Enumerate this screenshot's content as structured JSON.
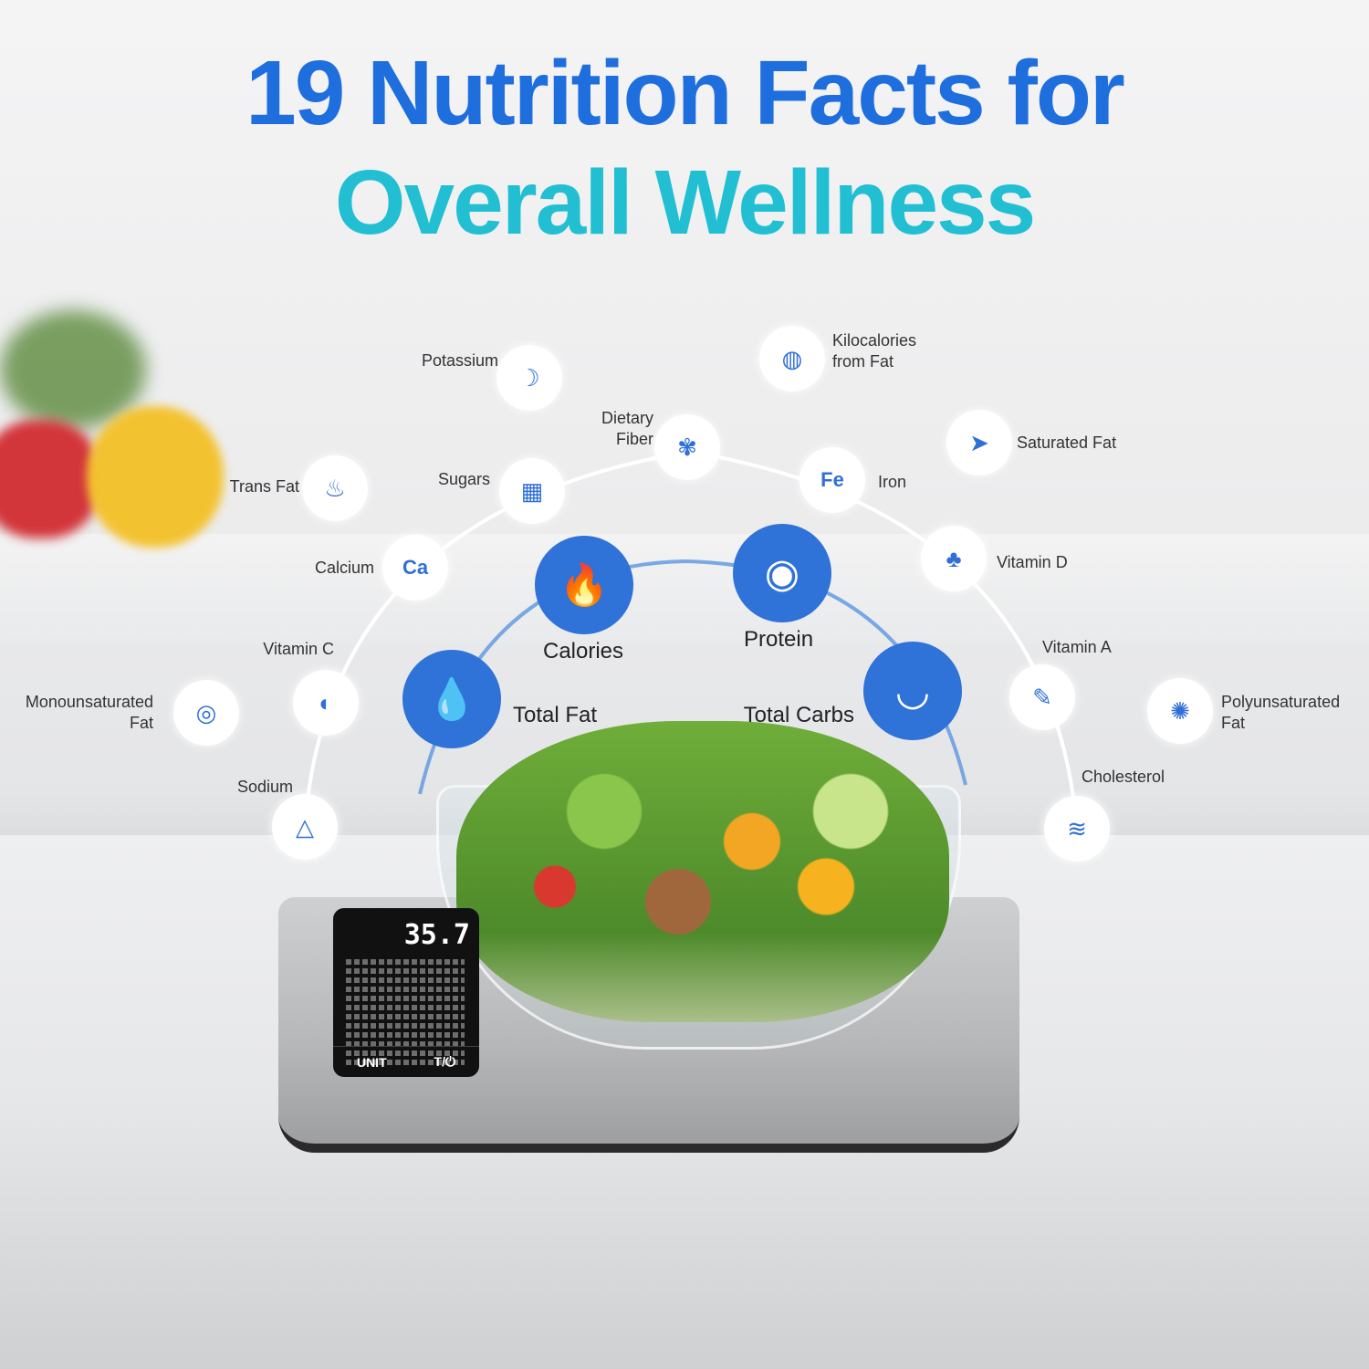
{
  "title": {
    "line1": "19 Nutrition Facts for",
    "line2": "Overall Wellness"
  },
  "colors": {
    "title_blue": "#1f6ede",
    "title_teal": "#22bfd3",
    "icon_blue": "#2f72d8"
  },
  "primary_nutrients": [
    {
      "label": "Calories",
      "icon": "flame-icon"
    },
    {
      "label": "Protein",
      "icon": "egg-icon"
    },
    {
      "label": "Total Fat",
      "icon": "droplets-icon"
    },
    {
      "label": "Total Carbs",
      "icon": "rice-bowl-icon"
    }
  ],
  "secondary_nutrients": [
    {
      "label": "Potassium",
      "icon": "banana-icon"
    },
    {
      "label": "Kilocalories\nfrom Fat",
      "icon": "steak-icon"
    },
    {
      "label": "Dietary\nFiber",
      "icon": "wheat-icon"
    },
    {
      "label": "Saturated Fat",
      "icon": "fish-icon"
    },
    {
      "label": "Trans Fat",
      "icon": "cupcake-icon"
    },
    {
      "label": "Sugars",
      "icon": "sugar-cubes-icon"
    },
    {
      "label": "Iron",
      "icon": "iron-pill-icon",
      "glyph": "Fe"
    },
    {
      "label": "Calcium",
      "icon": "calcium-bottle-icon",
      "glyph": "Ca"
    },
    {
      "label": "Vitamin D",
      "icon": "mushroom-icon"
    },
    {
      "label": "Vitamin C",
      "icon": "lemon-capsule-icon"
    },
    {
      "label": "Vitamin A",
      "icon": "carrot-icon"
    },
    {
      "label": "Monounsaturated\nFat",
      "icon": "avocado-icon"
    },
    {
      "label": "Polyunsaturated\nFat",
      "icon": "walnut-icon"
    },
    {
      "label": "Sodium",
      "icon": "salt-pile-icon"
    },
    {
      "label": "Cholesterol",
      "icon": "artery-icon"
    }
  ],
  "scale": {
    "readout": "35.7",
    "unit_button": "UNIT",
    "tare_button": "T/⏻"
  }
}
